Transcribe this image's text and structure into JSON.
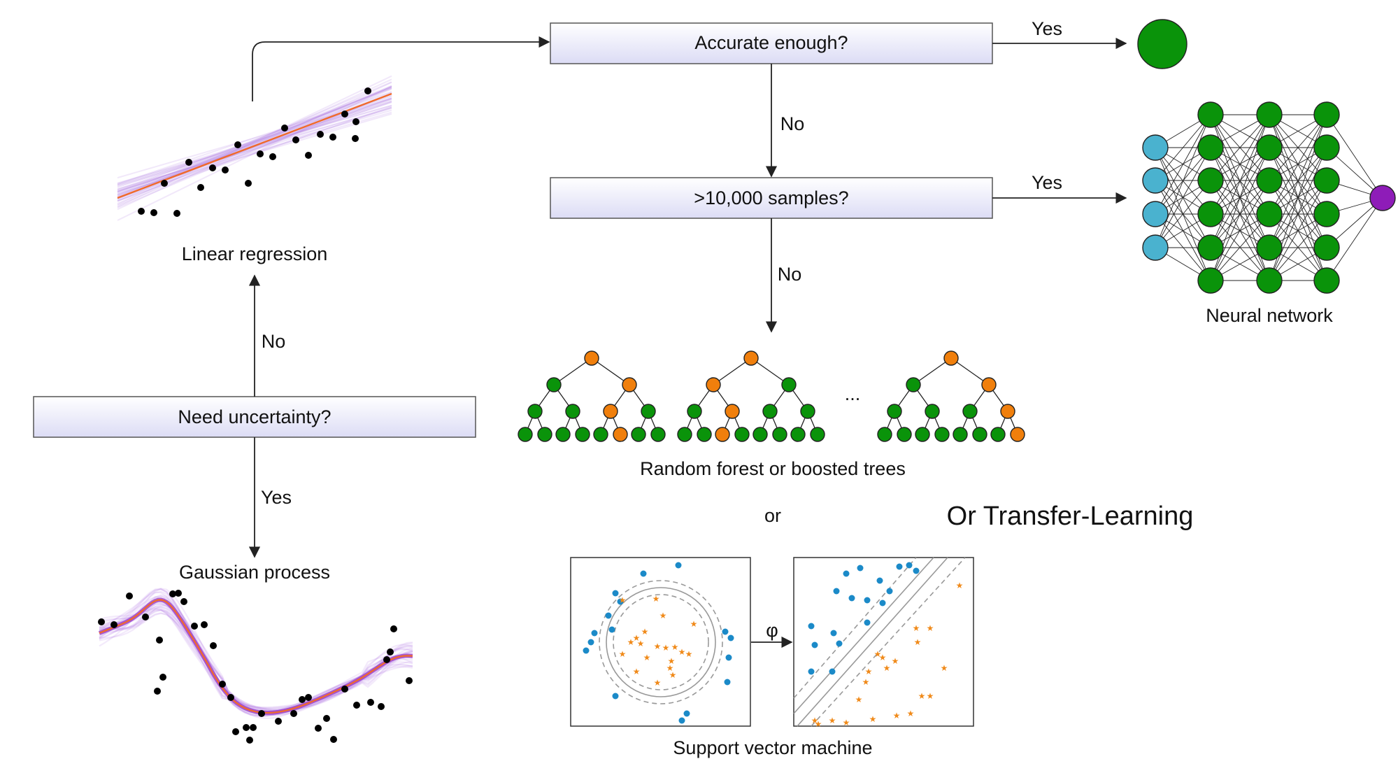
{
  "decisions": {
    "accurate": "Accurate enough?",
    "samples": ">10,000 samples?",
    "uncertainty": "Need uncertainty?"
  },
  "edge_labels": {
    "accurate_yes": "Yes",
    "accurate_no": "No",
    "samples_yes": "Yes",
    "samples_no": "No",
    "uncertainty_no": "No",
    "uncertainty_yes": "Yes"
  },
  "models": {
    "linear_regression": "Linear regression",
    "gaussian_process": "Gaussian process",
    "neural_network": "Neural network",
    "trees": "Random forest or boosted trees",
    "svm": "Support vector machine"
  },
  "or_label": "or",
  "ellipsis": "...",
  "phi": "φ",
  "transfer_learning": "Or Transfer-Learning",
  "colors": {
    "box_top": "#ffffff",
    "box_bottom": "#dcdcf5",
    "green": "#0a930a",
    "orange": "#f07f0c",
    "cyan": "#4ab2cf",
    "purple": "#8e1cb8",
    "regression_band": "#b47de6",
    "mean_line": "#f06a2a",
    "svm_blue": "#1b8ac8",
    "svm_orange": "#f08a1a"
  },
  "trees": {
    "node_colors": [
      [
        "orange",
        "green",
        "orange",
        "green",
        "green",
        "orange",
        "green",
        "green",
        "green",
        "green",
        "green",
        "green",
        "orange",
        "green",
        "green"
      ],
      [
        "orange",
        "orange",
        "green",
        "green",
        "orange",
        "green",
        "green",
        "green",
        "green",
        "orange",
        "green",
        "green",
        "green",
        "green",
        "green"
      ],
      [
        "orange",
        "green",
        "orange",
        "green",
        "green",
        "green",
        "orange",
        "green",
        "green",
        "green",
        "green",
        "green",
        "green",
        "green",
        "orange"
      ]
    ]
  }
}
